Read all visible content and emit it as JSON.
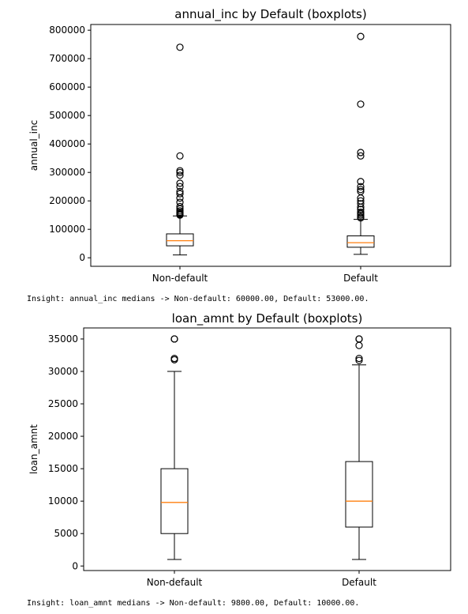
{
  "chart_data": [
    {
      "type": "boxplot",
      "title": "annual_inc by Default (boxplots)",
      "xlabel": "",
      "ylabel": "annual_inc",
      "ylim": [
        -30000,
        820000
      ],
      "yticks": [
        0,
        100000,
        200000,
        300000,
        400000,
        500000,
        600000,
        700000,
        800000
      ],
      "ytick_labels": [
        "0",
        "100000",
        "200000",
        "300000",
        "400000",
        "500000",
        "600000",
        "700000",
        "800000"
      ],
      "categories": [
        "Non-default",
        "Default"
      ],
      "boxes": [
        {
          "whisker_low": 10000,
          "q1": 42000,
          "median": 60000,
          "q3": 84000,
          "whisker_high": 147000,
          "outliers": [
            150000,
            153000,
            156000,
            160000,
            165000,
            172000,
            180000,
            195000,
            210000,
            225000,
            233000,
            250000,
            262000,
            290000,
            300000,
            306000,
            358000,
            740000
          ]
        },
        {
          "whisker_low": 12000,
          "q1": 37000,
          "median": 53000,
          "q3": 77000,
          "whisker_high": 135000,
          "outliers": [
            140000,
            144000,
            150000,
            155000,
            160000,
            170000,
            178000,
            190000,
            200000,
            210000,
            233000,
            240000,
            250000,
            268000,
            358000,
            370000,
            540000,
            778000
          ]
        }
      ]
    },
    {
      "type": "boxplot",
      "title": "loan_amnt by Default (boxplots)",
      "xlabel": "",
      "ylabel": "loan_amnt",
      "ylim": [
        -700,
        36700
      ],
      "yticks": [
        0,
        5000,
        10000,
        15000,
        20000,
        25000,
        30000,
        35000
      ],
      "ytick_labels": [
        "0",
        "5000",
        "10000",
        "15000",
        "20000",
        "25000",
        "30000",
        "35000"
      ],
      "categories": [
        "Non-default",
        "Default"
      ],
      "boxes": [
        {
          "whisker_low": 1000,
          "q1": 5000,
          "median": 9800,
          "q3": 15000,
          "whisker_high": 30000,
          "outliers": [
            31800,
            32000,
            35000,
            35000
          ]
        },
        {
          "whisker_low": 1000,
          "q1": 6000,
          "median": 10000,
          "q3": 16100,
          "whisker_high": 31000,
          "outliers": [
            31700,
            32000,
            34000,
            35000,
            35000
          ]
        }
      ]
    }
  ],
  "insights": [
    "Insight: annual_inc medians -> Non-default: 60000.00, Default: 53000.00.",
    "Insight: loan_amnt medians -> Non-default: 9800.00, Default: 10000.00."
  ],
  "colors": {
    "median": "#ff7f0e",
    "box": "#000000",
    "outlier": "#000000"
  }
}
